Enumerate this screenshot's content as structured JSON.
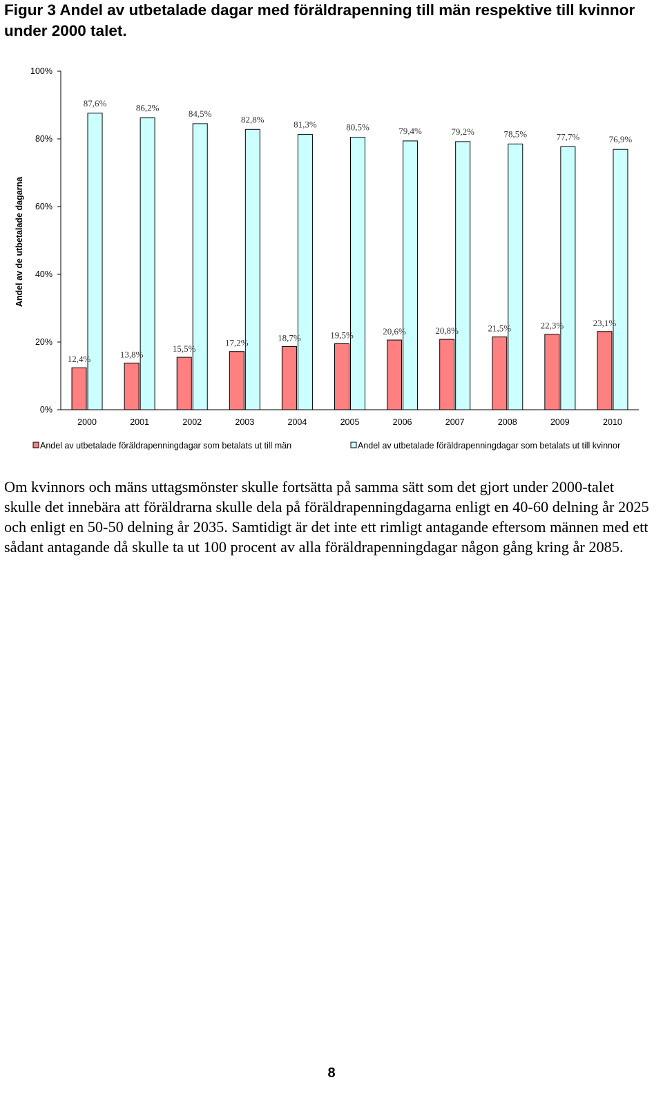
{
  "document": {
    "figure_title": "Figur 3 Andel av utbetalade dagar med föräldrapenning till män respektive till kvinnor under 2000 talet.",
    "paragraph": "Om kvinnors och mäns uttagsmönster skulle fortsätta på samma sätt som det gjort under 2000-talet skulle det innebära att föräldrarna skulle dela på föräldrapenningdagarna enligt en 40-60 delning år 2025 och enligt en 50-50 delning år 2035. Samtidigt är det inte ett rimligt antagande eftersom männen med ett sådant antagande då skulle ta ut 100 procent av alla föräldrapenningdagar någon gång kring år 2085.",
    "page_number": "8"
  },
  "chart_data": {
    "type": "bar",
    "title": "",
    "xlabel": "",
    "ylabel": "Andel av de utbetalade dagarna",
    "ylim": [
      0,
      100
    ],
    "yticks": [
      "0%",
      "20%",
      "40%",
      "60%",
      "80%",
      "100%"
    ],
    "grid": false,
    "legend_position": "bottom",
    "categories": [
      "2000",
      "2001",
      "2002",
      "2003",
      "2004",
      "2005",
      "2006",
      "2007",
      "2008",
      "2009",
      "2010"
    ],
    "series": [
      {
        "name": "Andel av utbetalade föräldrapenningdagar som betalats ut till män",
        "color": "#FF8080",
        "values": [
          12.4,
          13.8,
          15.5,
          17.2,
          18.7,
          19.5,
          20.6,
          20.8,
          21.5,
          22.3,
          23.1
        ],
        "labels": [
          "12,4%",
          "13,8%",
          "15,5%",
          "17,2%",
          "18,7%",
          "19,5%",
          "20,6%",
          "20,8%",
          "21,5%",
          "22,3%",
          "23,1%"
        ]
      },
      {
        "name": "Andel av utbetalade föräldrapenningdagar som betalats ut till kvinnor",
        "color": "#CCFFFF",
        "values": [
          87.6,
          86.2,
          84.5,
          82.8,
          81.3,
          80.5,
          79.4,
          79.2,
          78.5,
          77.7,
          76.9
        ],
        "labels": [
          "87,6%",
          "86,2%",
          "84,5%",
          "82,8%",
          "81,3%",
          "80,5%",
          "79,4%",
          "79,2%",
          "78,5%",
          "77,7%",
          "76,9%"
        ]
      }
    ]
  }
}
